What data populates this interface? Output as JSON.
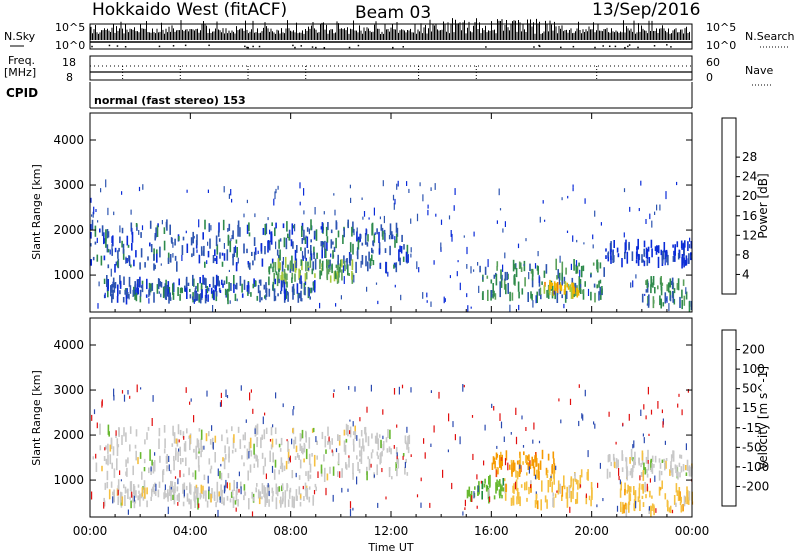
{
  "header": {
    "station": "Hokkaido West (fitACF)",
    "beam": "Beam 03",
    "date": "13/Sep/2016"
  },
  "strip_labels": {
    "nsky": "N.Sky",
    "nsky_top": "10^5",
    "nsky_bottom": "10^0",
    "nsearch": "N.Search",
    "nsearch_top": "10^5",
    "nsearch_bottom": "10^0",
    "freq_line1": "Freq.",
    "freq_line2": "[MHz]",
    "freq_top": "18",
    "freq_bottom": "8",
    "nave": "Nave",
    "nave_top": "60",
    "nave_bottom": "0",
    "cpid": "CPID",
    "mode": "normal (fast stereo) 153"
  },
  "colors": {
    "power_scale": [
      "#0a2bd8",
      "#2d55b0",
      "#2d8a4b",
      "#5aa05a",
      "#a8c83c",
      "#f0b400",
      "#f08000",
      "#e64010",
      "#d21010"
    ],
    "velocity_scale": [
      "#e10f0f",
      "#f04a0a",
      "#f59a00",
      "#f5c040",
      "#c8c8c8",
      "#68b830",
      "#1e8a3c",
      "#2a4ab0",
      "#1a2ac8"
    ]
  },
  "chart_data": [
    {
      "type": "heatmap",
      "panel": "power",
      "ylabel": "Slant Range [km]",
      "xlabel": "",
      "xlim": [
        "00:00",
        "24:00"
      ],
      "ylim": [
        180,
        4600
      ],
      "yticks": [
        "1000",
        "2000",
        "3000",
        "4000"
      ],
      "xticks": [
        "00:00",
        "04:00",
        "08:00",
        "12:00",
        "16:00",
        "20:00",
        "00:00"
      ],
      "colorbar": {
        "label": "Power [dB]",
        "range": [
          0,
          32
        ],
        "ticks": [
          "4",
          "8",
          "12",
          "16",
          "20",
          "24",
          "28"
        ]
      },
      "echo_regions": [
        {
          "t_start": 0.0,
          "t_end": 12.7,
          "range_km": [
            1150,
            2150
          ],
          "power_db": 8
        },
        {
          "t_start": 7.0,
          "t_end": 10.5,
          "range_km": [
            850,
            1300
          ],
          "power_db": 16
        },
        {
          "t_start": 0.5,
          "t_end": 9.0,
          "range_km": [
            450,
            900
          ],
          "power_db": 8
        },
        {
          "t_start": 15.5,
          "t_end": 20.5,
          "range_km": [
            500,
            1250
          ],
          "power_db": 12
        },
        {
          "t_start": 18.0,
          "t_end": 19.5,
          "range_km": [
            600,
            800
          ],
          "power_db": 24
        },
        {
          "t_start": 20.5,
          "t_end": 24.0,
          "range_km": [
            1250,
            1700
          ],
          "power_db": 4
        },
        {
          "t_start": 22.0,
          "t_end": 24.0,
          "range_km": [
            300,
            900
          ],
          "power_db": 12
        }
      ]
    },
    {
      "type": "heatmap",
      "panel": "velocity",
      "ylabel": "Slant Range [km]",
      "xlabel": "Time UT",
      "xlim": [
        "00:00",
        "24:00"
      ],
      "ylim": [
        180,
        4600
      ],
      "yticks": [
        "1000",
        "2000",
        "3000",
        "4000"
      ],
      "xticks": [
        "00:00",
        "04:00",
        "08:00",
        "12:00",
        "16:00",
        "20:00",
        "00:00"
      ],
      "colorbar": {
        "label": "Velocity [m s^-1]",
        "ticks": [
          "200",
          "100",
          "50",
          "15",
          "-15",
          "-50",
          "-100",
          "-200"
        ]
      },
      "echo_regions": [
        {
          "t_start": 0.0,
          "t_end": 12.7,
          "range_km": [
            1050,
            2150
          ],
          "velocity_ms": 0
        },
        {
          "t_start": 0.5,
          "t_end": 9.0,
          "range_km": [
            450,
            900
          ],
          "velocity_ms": 0
        },
        {
          "t_start": 16.0,
          "t_end": 18.5,
          "range_km": [
            1150,
            1600
          ],
          "velocity_ms": -100
        },
        {
          "t_start": 16.5,
          "t_end": 20.0,
          "range_km": [
            450,
            1150
          ],
          "velocity_ms": -50
        },
        {
          "t_start": 15.0,
          "t_end": 16.5,
          "range_km": [
            600,
            1000
          ],
          "velocity_ms": 50
        },
        {
          "t_start": 20.5,
          "t_end": 24.0,
          "range_km": [
            1100,
            1600
          ],
          "velocity_ms": 0
        },
        {
          "t_start": 21.0,
          "t_end": 24.0,
          "range_km": [
            300,
            900
          ],
          "velocity_ms": -50
        }
      ]
    }
  ]
}
